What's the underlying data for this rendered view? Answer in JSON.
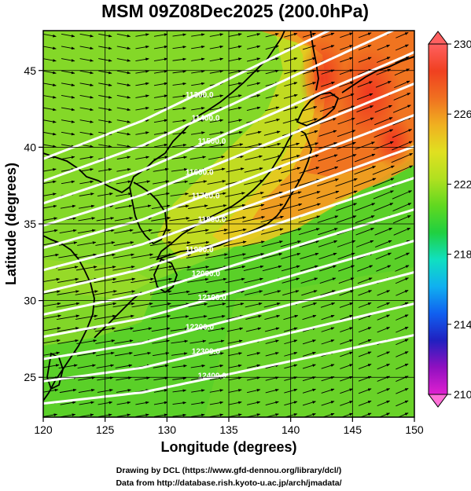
{
  "title": "MSM 09Z08Dec2025 (200.0hPa)",
  "xlabel": "Longitude (degrees)",
  "ylabel": "Latitude  (degrees)",
  "credit_line1": "Drawing by DCL (https://www.gfd-dennou.org/library/dcl/)",
  "credit_line2": "Data from http://database.rish.kyoto-u.ac.jp/arch/jmadata/",
  "map": {
    "lon_range": [
      120,
      150
    ],
    "lat_range": [
      22.4,
      47.6
    ],
    "lon_ticks": [
      120,
      125,
      130,
      135,
      140,
      145,
      150
    ],
    "lat_ticks": [
      25,
      30,
      35,
      40,
      45
    ],
    "gridlines": true,
    "field": "temperature-shading",
    "vectors": "wind-arrows",
    "contours": "geopotential-height (white lines)"
  },
  "colorbar": {
    "min": 210,
    "max": 230,
    "ticks": [
      210,
      214,
      218,
      222,
      226,
      230
    ],
    "extend": "both",
    "placement": "right",
    "colors": [
      "#e020d0",
      "#9010c0",
      "#2020c0",
      "#1060f0",
      "#10b0f0",
      "#10e0c0",
      "#20d040",
      "#60d820",
      "#b0e020",
      "#e0e020",
      "#f0b020",
      "#f07020",
      "#f04020",
      "#ff6060"
    ]
  },
  "contour_labels": [
    "11300.0",
    "11400.0",
    "11500.0",
    "11600.0",
    "11700.0",
    "11800.0",
    "11900.0",
    "12000.0",
    "12100.0",
    "12200.0",
    "12300.0",
    "12400.0"
  ]
}
